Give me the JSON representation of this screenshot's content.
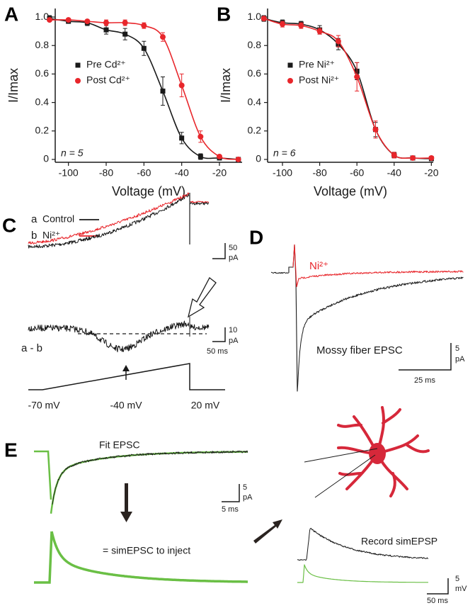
{
  "chart_data": [
    {
      "type": "scatter",
      "panel_label": "A",
      "x_label": "Voltage (mV)",
      "y_label": "I/Imax",
      "annotation": "n = 5",
      "x": [
        -110,
        -100,
        -90,
        -80,
        -70,
        -60,
        -50,
        -40,
        -30,
        -20,
        -10
      ],
      "series": [
        {
          "name": "Pre Cd²⁺",
          "color": "#1a1a1a",
          "marker": "square",
          "values": [
            0.99,
            0.97,
            0.96,
            0.91,
            0.88,
            0.78,
            0.48,
            0.15,
            0.02,
            0.01,
            0.0
          ],
          "errors": [
            0.02,
            0.01,
            0.02,
            0.03,
            0.04,
            0.05,
            0.1,
            0.04,
            0.02,
            0.01,
            0.01
          ]
        },
        {
          "name": "Post Cd²⁺",
          "color": "#e8262b",
          "marker": "circle",
          "values": [
            0.98,
            0.98,
            0.97,
            0.96,
            0.96,
            0.94,
            0.86,
            0.52,
            0.16,
            0.02,
            0.0
          ],
          "errors": [
            0.01,
            0.01,
            0.01,
            0.02,
            0.02,
            0.02,
            0.03,
            0.08,
            0.04,
            0.01,
            0.01
          ]
        }
      ],
      "xlim": [
        -107,
        -8
      ],
      "ylim": [
        -0.02,
        1.06
      ],
      "xticks": [
        -100,
        -80,
        -60,
        -40,
        -20
      ],
      "yticks": [
        0,
        0.2,
        0.4,
        0.6,
        0.8,
        {
          "value": 1,
          "label": "1.0"
        }
      ],
      "legend": "center left",
      "fit_line": true
    },
    {
      "type": "scatter",
      "panel_label": "B",
      "x_label": "Voltage (mV)",
      "y_label": "I/Imax",
      "annotation": "n = 6",
      "x": [
        -110,
        -100,
        -90,
        -80,
        -70,
        -60,
        -50,
        -40,
        -30,
        -20
      ],
      "series": [
        {
          "name": "Pre Ni²⁺",
          "color": "#1a1a1a",
          "marker": "square",
          "values": [
            0.99,
            0.96,
            0.95,
            0.91,
            0.81,
            0.62,
            0.21,
            0.03,
            0.01,
            0.005
          ],
          "errors": [
            0.02,
            0.02,
            0.02,
            0.03,
            0.04,
            0.06,
            0.05,
            0.02,
            0.01,
            0.01
          ]
        },
        {
          "name": "Post Ni²⁺",
          "color": "#e8262b",
          "marker": "circle",
          "values": [
            0.99,
            0.95,
            0.94,
            0.9,
            0.83,
            0.58,
            0.21,
            0.03,
            0.01,
            0.01
          ],
          "errors": [
            0.01,
            0.02,
            0.02,
            0.02,
            0.04,
            0.1,
            0.06,
            0.02,
            0.01,
            0.01
          ]
        }
      ],
      "xlim": [
        -108,
        -19
      ],
      "ylim": [
        -0.02,
        1.06
      ],
      "xticks": [
        -100,
        -80,
        -60,
        -40,
        -20
      ],
      "yticks": [
        0,
        0.2,
        0.4,
        0.6,
        0.8,
        {
          "value": 1,
          "label": "1.0"
        }
      ],
      "legend": "center left",
      "fit_line": true
    }
  ],
  "panel_c": {
    "panel_label": "C",
    "legend": [
      {
        "key": "a",
        "name": "Control"
      },
      {
        "key": "b",
        "name": "Ni²⁺"
      }
    ],
    "scale_top": [
      "50",
      "pA"
    ],
    "scale_diff": [
      "10",
      "pA"
    ],
    "time_scale": "50 ms",
    "diff_label": "a - b",
    "voltages": [
      "-70 mV",
      "-40 mV",
      "20 mV"
    ]
  },
  "panel_d": {
    "panel_label": "D",
    "trace_label": "Ni²⁺",
    "epsc_label": "Mossy fiber EPSC",
    "scale": [
      "5",
      "pA"
    ],
    "time_scale": "25 ms"
  },
  "panel_e": {
    "panel_label": "E",
    "fit_label": "Fit EPSC",
    "scale": [
      "5",
      "pA"
    ],
    "time_scale": "5 ms",
    "inject_label": "= simEPSC to inject",
    "record_label": "Record simEPSP",
    "scale_right": [
      "5",
      "mV"
    ],
    "time_scale_right": "50 ms"
  }
}
